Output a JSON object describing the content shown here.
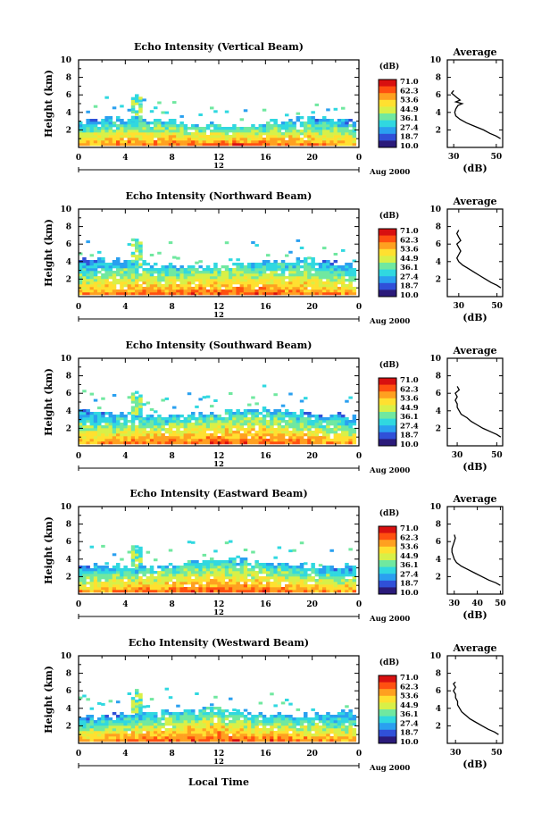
{
  "units_label": "(dB)",
  "colorbar_ticks": [
    "71.0",
    "62.3",
    "53.6",
    "44.9",
    "36.1",
    "27.4",
    "18.7",
    "10.0"
  ],
  "bottom_xlabel": "Local Time",
  "date_label": "Aug 2000",
  "day_label": "12",
  "colors": {
    "scale": [
      "#2b1a7a",
      "#3050d8",
      "#2aa0f0",
      "#30d8e0",
      "#70e8a0",
      "#d8f048",
      "#ffe030",
      "#ffa020",
      "#ff5010",
      "#d81010"
    ]
  },
  "chart_data": [
    {
      "type": "heatmap",
      "title": "Echo Intensity (Vertical Beam)",
      "ylabel": "Height (km)",
      "xticks": [
        "0",
        "4",
        "8",
        "12",
        "16",
        "20",
        "0"
      ],
      "yticks": [
        "10",
        "8",
        "6",
        "4",
        "2"
      ],
      "xlim": [
        0,
        24
      ],
      "ylim": [
        0,
        10
      ],
      "cloud_top_km": 2.8,
      "average": {
        "title": "Average",
        "xlabel": "(dB)",
        "xticks": [
          "30",
          "50"
        ],
        "xlim": [
          27,
          53
        ],
        "yticks": [
          "10",
          "8",
          "6",
          "4",
          "2"
        ],
        "height_km": [
          1.0,
          1.3,
          1.6,
          2.0,
          2.4,
          2.8,
          3.2,
          3.6,
          4.0,
          4.4,
          4.8,
          5.0,
          5.2,
          5.4,
          5.6,
          5.8,
          6.0,
          6.2,
          6.5
        ],
        "db": [
          52,
          50,
          47,
          44,
          40,
          36,
          33,
          31,
          30.5,
          31,
          32,
          34,
          31,
          33,
          32,
          31,
          30,
          29,
          30
        ]
      }
    },
    {
      "type": "heatmap",
      "title": "Echo Intensity (Northward Beam)",
      "ylabel": "Height (km)",
      "xticks": [
        "0",
        "4",
        "8",
        "12",
        "16",
        "20",
        "0"
      ],
      "yticks": [
        "10",
        "8",
        "6",
        "4",
        "2"
      ],
      "xlim": [
        0,
        24
      ],
      "ylim": [
        0,
        10
      ],
      "cloud_top_km": 3.6,
      "average": {
        "title": "Average",
        "xlabel": "(dB)",
        "xticks": [
          "30",
          "50"
        ],
        "xlim": [
          24,
          53
        ],
        "yticks": [
          "10",
          "8",
          "6",
          "4",
          "2"
        ],
        "height_km": [
          1.0,
          1.3,
          1.6,
          2.0,
          2.4,
          2.8,
          3.2,
          3.6,
          4.0,
          4.4,
          4.8,
          5.2,
          5.6,
          6.0,
          6.4,
          6.8,
          7.2,
          7.6
        ],
        "db": [
          52,
          50,
          47,
          44,
          41,
          38,
          35,
          32,
          30,
          29,
          30,
          31,
          30,
          29,
          31,
          30,
          29,
          30
        ]
      }
    },
    {
      "type": "heatmap",
      "title": "Echo Intensity (Southward Beam)",
      "ylabel": "Height (km)",
      "xticks": [
        "0",
        "4",
        "8",
        "12",
        "16",
        "20",
        "0"
      ],
      "yticks": [
        "10",
        "8",
        "6",
        "4",
        "2"
      ],
      "xlim": [
        0,
        24
      ],
      "ylim": [
        0,
        10
      ],
      "cloud_top_km": 3.6,
      "average": {
        "title": "Average",
        "xlabel": "(dB)",
        "xticks": [
          "30",
          "50"
        ],
        "xlim": [
          25,
          53
        ],
        "yticks": [
          "10",
          "8",
          "6",
          "4",
          "2"
        ],
        "height_km": [
          1.0,
          1.3,
          1.6,
          2.0,
          2.4,
          2.8,
          3.2,
          3.6,
          4.0,
          4.4,
          4.8,
          5.2,
          5.6,
          6.0,
          6.4,
          6.8
        ],
        "db": [
          52,
          50,
          47,
          43,
          40,
          37,
          35,
          32,
          31,
          30,
          30,
          29,
          30,
          29,
          31,
          30
        ]
      }
    },
    {
      "type": "heatmap",
      "title": "Echo Intensity (Eastward Beam)",
      "ylabel": "Height (km)",
      "xticks": [
        "0",
        "4",
        "8",
        "12",
        "16",
        "20",
        "0"
      ],
      "yticks": [
        "10",
        "8",
        "6",
        "4",
        "2"
      ],
      "xlim": [
        0,
        24
      ],
      "ylim": [
        0,
        10
      ],
      "cloud_top_km": 3.4,
      "average": {
        "title": "Average",
        "xlabel": "(dB)",
        "xticks": [
          "30",
          "40",
          "50"
        ],
        "xlim": [
          27,
          51
        ],
        "yticks": [
          "10",
          "8",
          "6",
          "4",
          "2"
        ],
        "height_km": [
          1.0,
          1.3,
          1.6,
          2.0,
          2.4,
          2.8,
          3.2,
          3.6,
          4.0,
          4.4,
          4.8,
          5.2,
          5.6,
          6.0,
          6.4,
          6.8
        ],
        "db": [
          50,
          48,
          45,
          42,
          39,
          36,
          33,
          31,
          30,
          29.5,
          29,
          29,
          29.5,
          30,
          30.5,
          30
        ]
      }
    },
    {
      "type": "heatmap",
      "title": "Echo Intensity (Westward Beam)",
      "ylabel": "Height (km)",
      "xticks": [
        "0",
        "4",
        "8",
        "12",
        "16",
        "20",
        "0"
      ],
      "yticks": [
        "10",
        "8",
        "6",
        "4",
        "2"
      ],
      "xlim": [
        0,
        24
      ],
      "ylim": [
        0,
        10
      ],
      "cloud_top_km": 3.4,
      "average": {
        "title": "Average",
        "xlabel": "(dB)",
        "xticks": [
          "30",
          "50"
        ],
        "xlim": [
          26,
          53
        ],
        "yticks": [
          "10",
          "8",
          "6",
          "4",
          "2"
        ],
        "height_km": [
          1.0,
          1.3,
          1.6,
          2.0,
          2.4,
          2.8,
          3.2,
          3.6,
          4.0,
          4.4,
          4.8,
          5.2,
          5.6,
          6.0,
          6.4,
          6.8,
          7.0
        ],
        "db": [
          51,
          49,
          46,
          43,
          40,
          37,
          35,
          33,
          32,
          31,
          31,
          30,
          30,
          29,
          30,
          29,
          30
        ]
      }
    }
  ]
}
